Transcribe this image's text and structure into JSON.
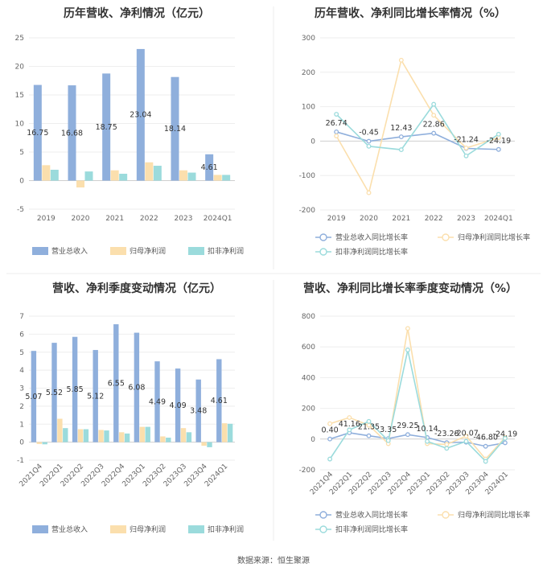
{
  "chart_data": [
    {
      "type": "bar",
      "title": "历年营收、净利情况（亿元）",
      "categories": [
        "2019",
        "2020",
        "2021",
        "2022",
        "2023",
        "2024Q1"
      ],
      "ylim": [
        -5,
        25
      ],
      "yticks": [
        25,
        20,
        15,
        10,
        5,
        0,
        -5
      ],
      "series": [
        {
          "name": "营业总收入",
          "values": [
            16.75,
            16.68,
            18.75,
            23.04,
            18.14,
            4.61
          ],
          "color": "#8fafdc"
        },
        {
          "name": "归母净利润",
          "values": [
            2.7,
            -1.2,
            1.8,
            3.2,
            1.8,
            1.0
          ],
          "color": "#fbdfad"
        },
        {
          "name": "扣非净利润",
          "values": [
            1.9,
            1.6,
            1.2,
            2.6,
            1.4,
            1.0
          ],
          "color": "#9bdbdc"
        }
      ],
      "data_labels": [
        "16.75",
        "16.68",
        "18.75",
        "23.04",
        "18.14",
        "4.61"
      ]
    },
    {
      "type": "line",
      "title": "历年营收、净利同比增长率情况（%）",
      "categories": [
        "2019",
        "2020",
        "2021",
        "2022",
        "2023",
        "2024Q1"
      ],
      "ylim": [
        -200,
        300
      ],
      "yticks": [
        300,
        200,
        100,
        0,
        -100,
        -200
      ],
      "series": [
        {
          "name": "营业总收入同比增长率",
          "values": [
            26.74,
            -0.45,
            12.43,
            22.86,
            -21.24,
            -24.19
          ],
          "color": "#8fafdc"
        },
        {
          "name": "归母净利润同比增长率",
          "values": [
            15,
            -150,
            235,
            75,
            -20,
            10
          ],
          "color": "#fbdfad"
        },
        {
          "name": "扣非净利润同比增长率",
          "values": [
            78,
            -15,
            -25,
            107,
            -43,
            20
          ],
          "color": "#9bdbdc"
        }
      ],
      "data_labels": [
        "26.74",
        "-0.45",
        "12.43",
        "22.86",
        "-21.24",
        "-24.19"
      ]
    },
    {
      "type": "bar",
      "title": "营收、净利季度变动情况（亿元）",
      "categories": [
        "2021Q4",
        "2022Q1",
        "2022Q2",
        "2022Q3",
        "2022Q4",
        "2023Q1",
        "2023Q2",
        "2023Q3",
        "2023Q4",
        "2024Q1"
      ],
      "ylim": [
        -1,
        7
      ],
      "yticks": [
        7,
        6,
        5,
        4,
        3,
        2,
        1,
        0,
        -1
      ],
      "series": [
        {
          "name": "营业总收入",
          "values": [
            5.07,
            5.52,
            5.85,
            5.12,
            6.55,
            6.08,
            4.49,
            4.09,
            3.48,
            4.61
          ],
          "color": "#8fafdc"
        },
        {
          "name": "归母净利润",
          "values": [
            -0.1,
            1.3,
            0.72,
            0.68,
            0.55,
            0.85,
            0.32,
            0.78,
            -0.2,
            1.05
          ],
          "color": "#fbdfad"
        },
        {
          "name": "扣非净利润",
          "values": [
            -0.12,
            0.78,
            0.72,
            0.65,
            0.48,
            0.85,
            0.25,
            0.55,
            -0.28,
            1.02
          ],
          "color": "#9bdbdc"
        }
      ],
      "data_labels": [
        "5.07",
        "5.52",
        "5.85",
        "5.12",
        "6.55",
        "6.08",
        "4.49",
        "4.09",
        "3.48",
        "4.61"
      ]
    },
    {
      "type": "line",
      "title": "营收、净利同比增长率季度变动情况（%）",
      "categories": [
        "2021Q4",
        "2022Q1",
        "2022Q2",
        "2022Q3",
        "2022Q4",
        "2023Q1",
        "2023Q2",
        "2023Q3",
        "2023Q4",
        "2024Q1"
      ],
      "ylim": [
        -200,
        800
      ],
      "yticks": [
        800,
        600,
        400,
        200,
        0,
        -200
      ],
      "series": [
        {
          "name": "营业总收入同比增长率",
          "values": [
            0.4,
            41.16,
            21.35,
            3.35,
            29.25,
            10.14,
            -23.28,
            -20.07,
            -46.8,
            -24.19
          ],
          "color": "#8fafdc"
        },
        {
          "name": "归母净利润同比增长率",
          "values": [
            100,
            140,
            90,
            -30,
            720,
            -30,
            -35,
            20,
            -130,
            10
          ],
          "color": "#fbdfad"
        },
        {
          "name": "扣非净利润同比增长率",
          "values": [
            -130,
            60,
            115,
            -10,
            580,
            -15,
            -60,
            -15,
            -145,
            5
          ],
          "color": "#9bdbdc"
        }
      ],
      "data_labels": [
        "0.40",
        "41.16",
        "21.35",
        "3.35",
        "29.25",
        "10.14",
        "-23.28",
        "-20.07",
        "-46.80",
        "-24.19"
      ]
    }
  ],
  "source": "数据来源：恒生聚源"
}
